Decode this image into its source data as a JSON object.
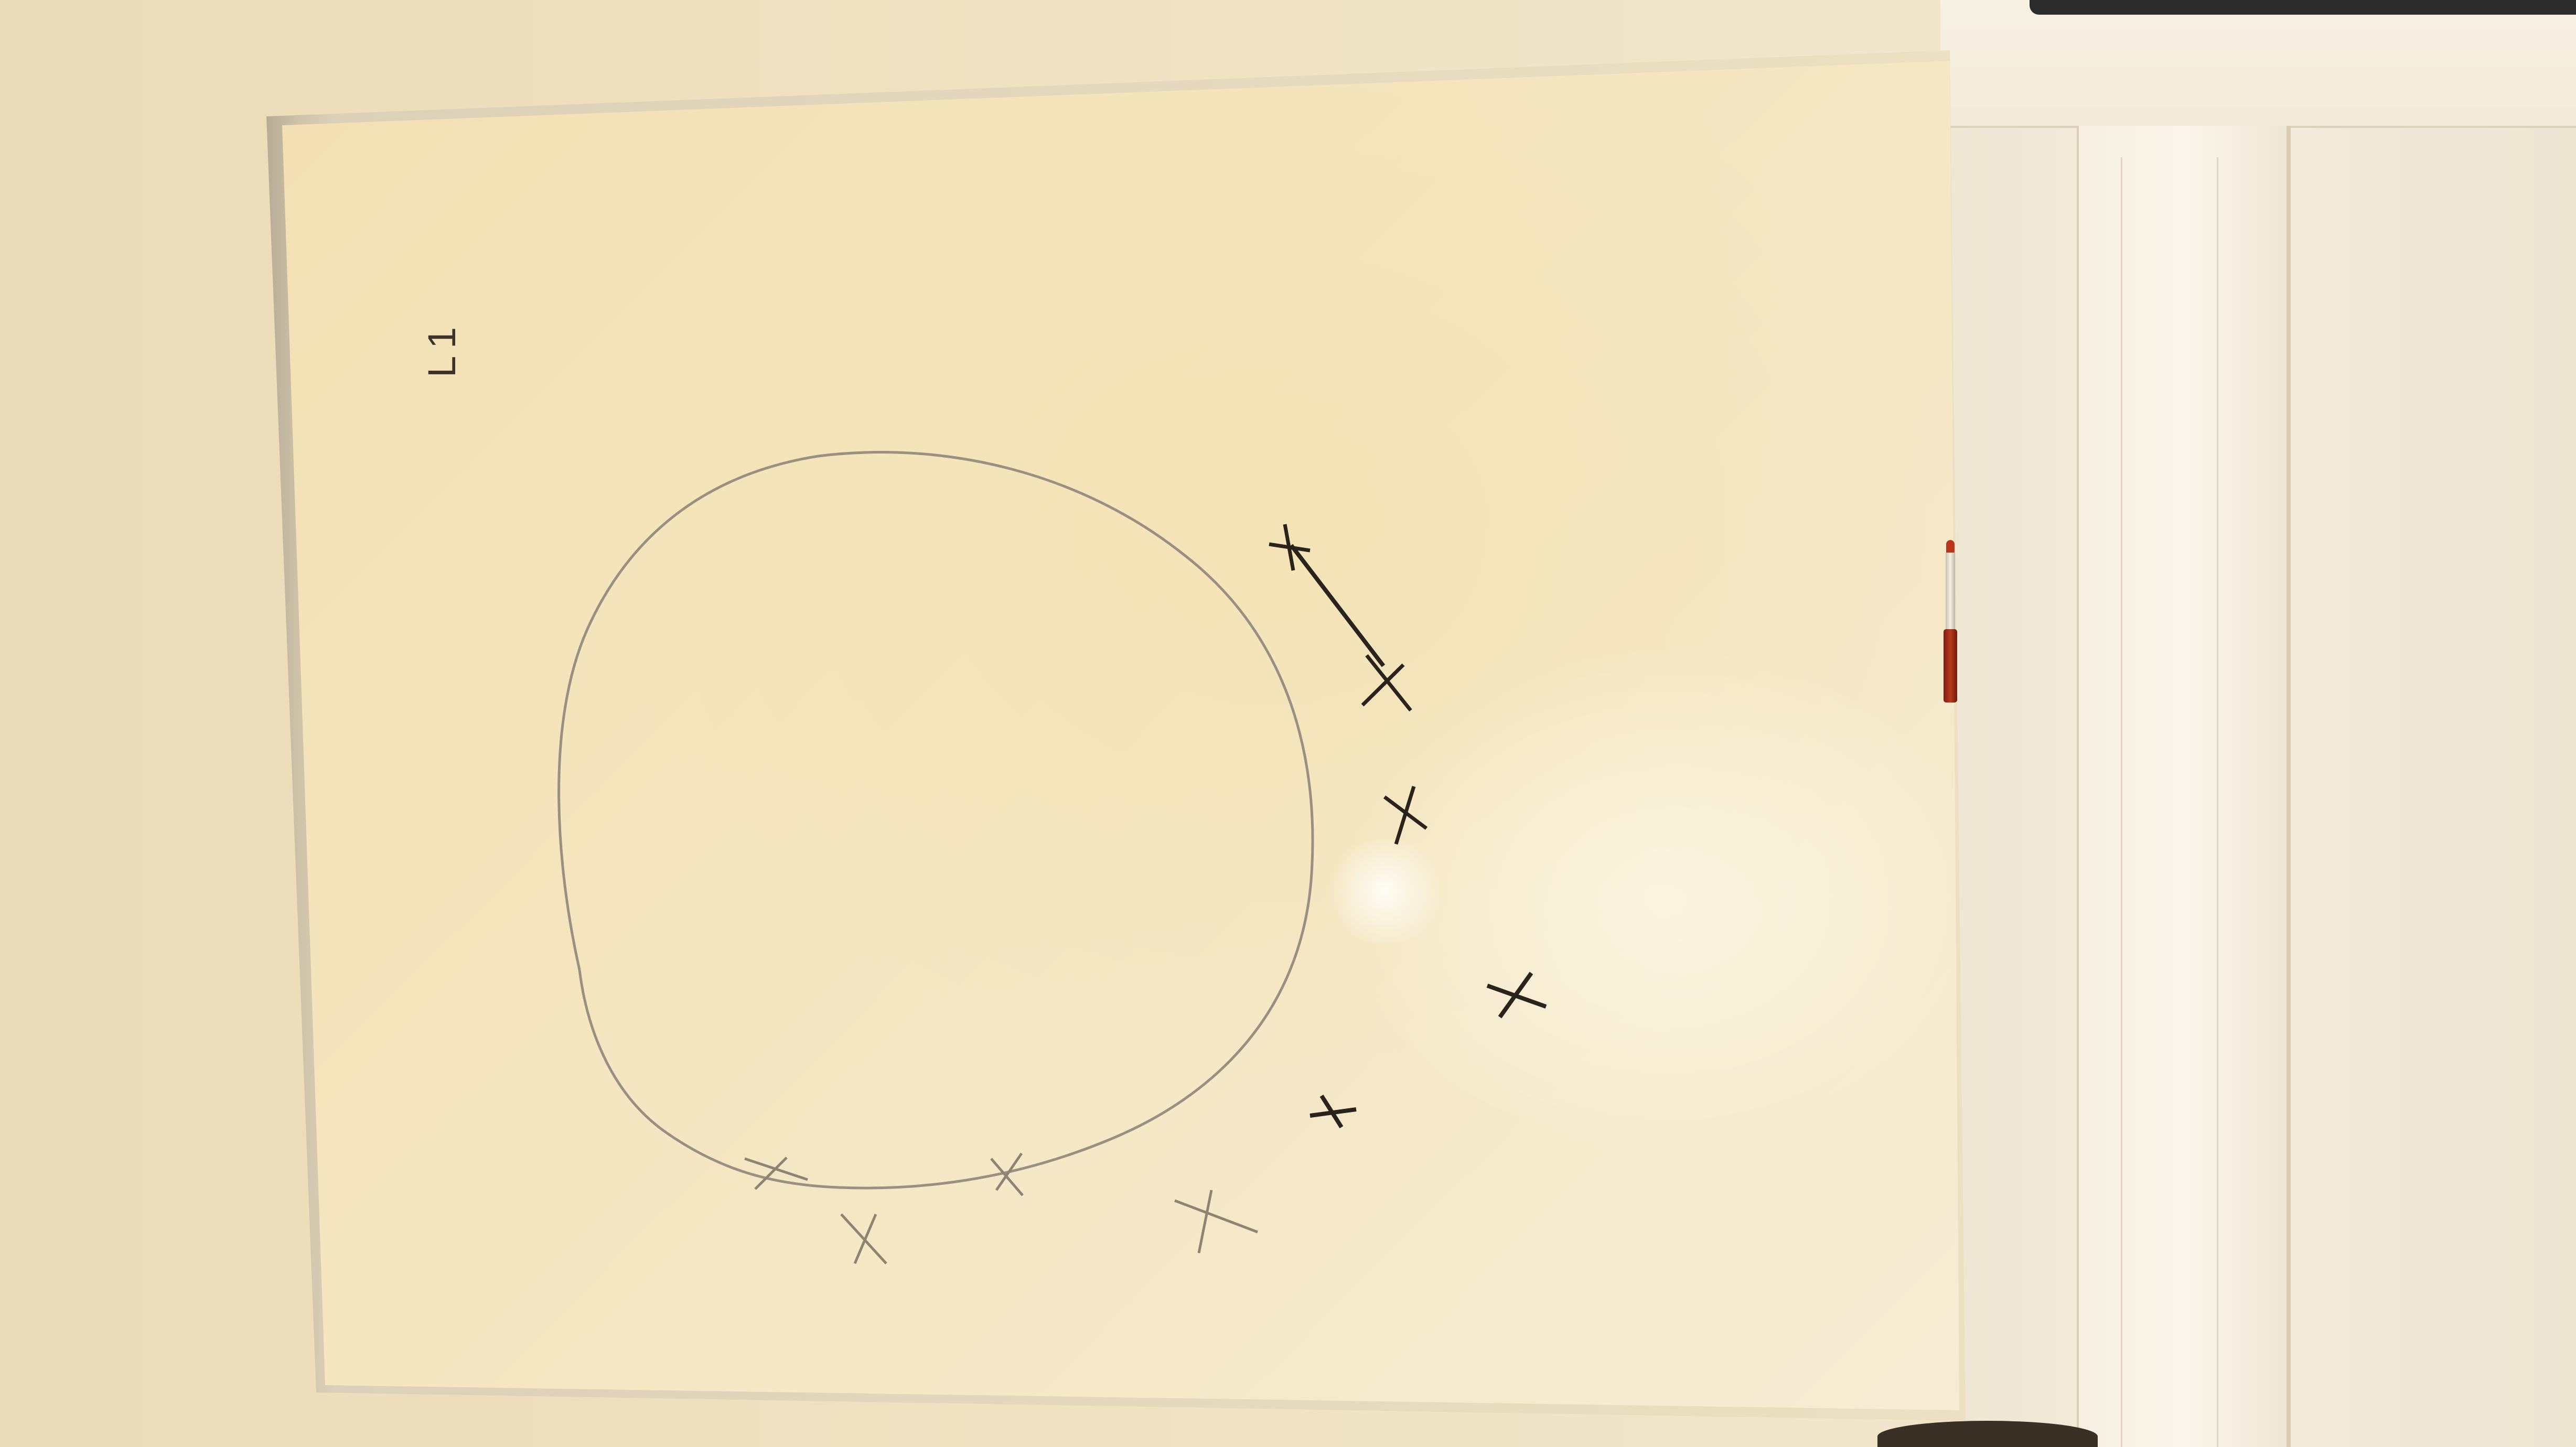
{
  "scene": {
    "description_label": "whiteboard-photo"
  },
  "board": {
    "label": "L1"
  },
  "colors": {
    "marker_dark": "#2a231b",
    "pencil": "#9a8f80",
    "marker_red": "#b83a1e"
  },
  "icons": {
    "marker": "red-whiteboard-marker"
  },
  "marks": {
    "cross_count": 10
  }
}
